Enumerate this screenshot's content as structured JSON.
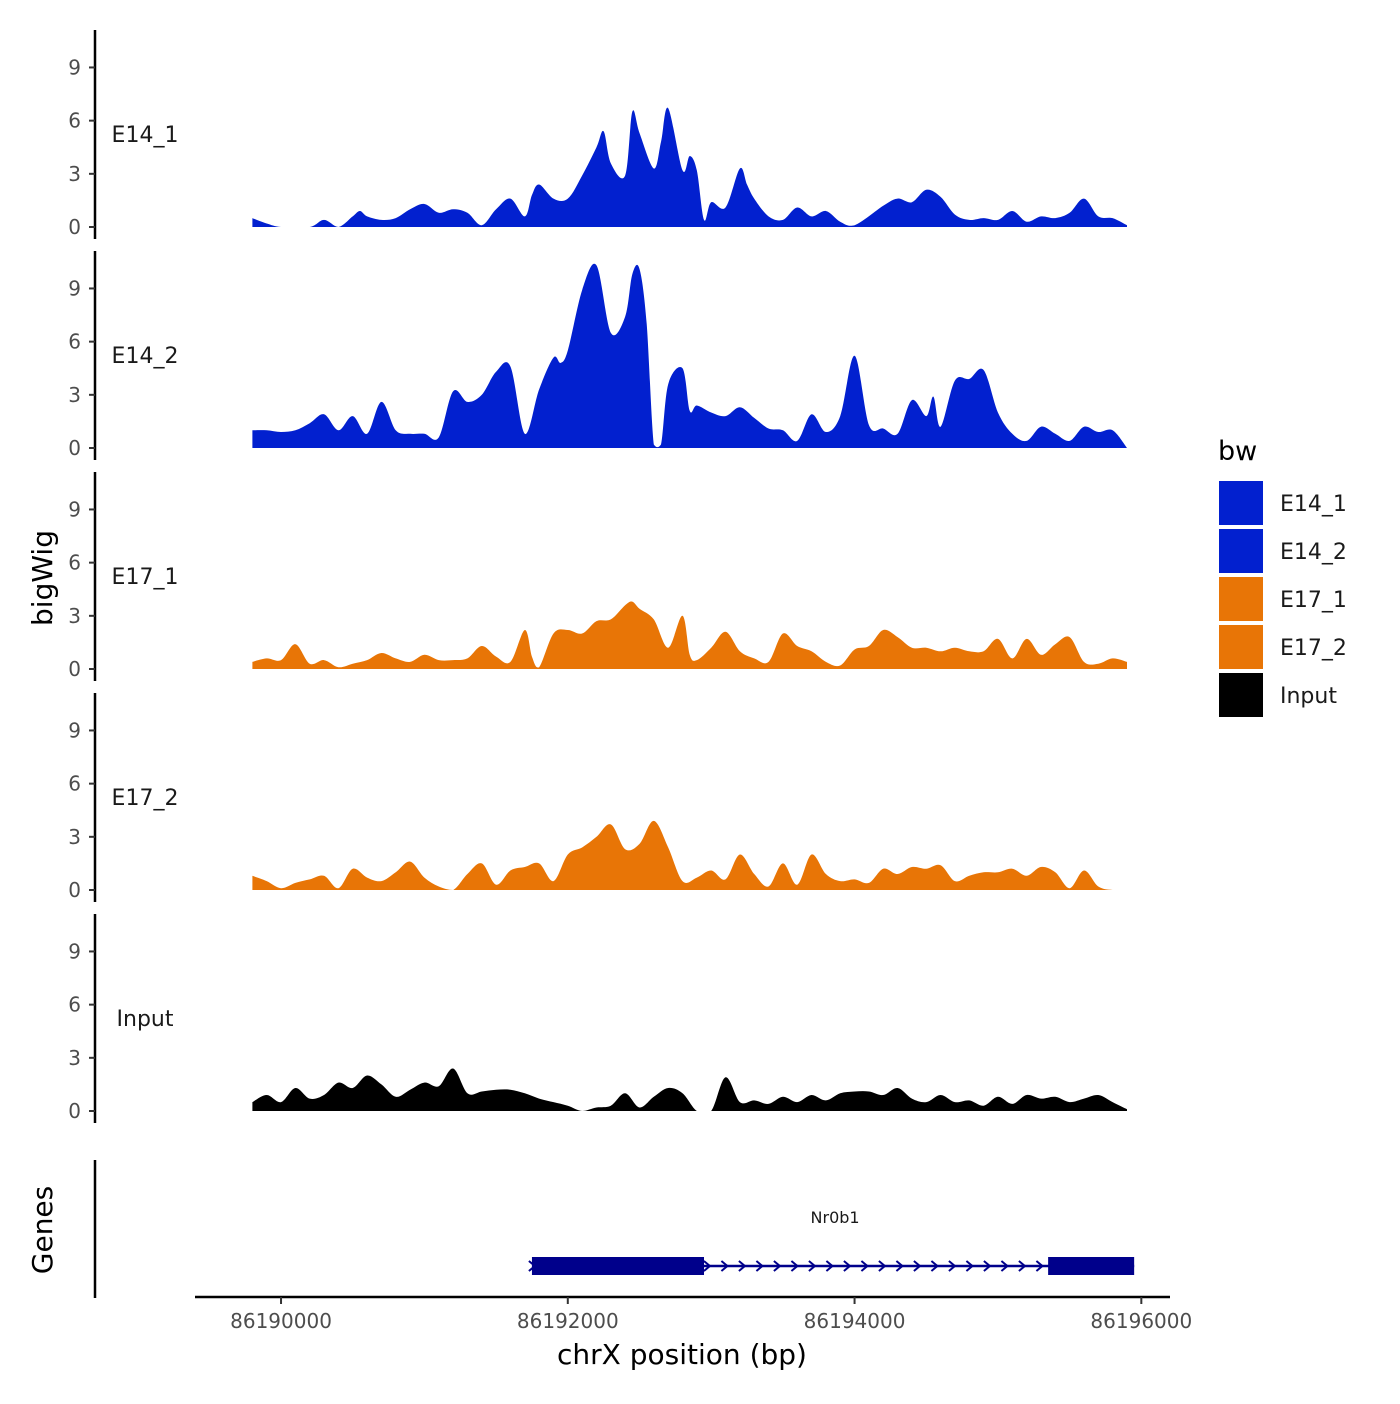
{
  "chart_data": {
    "type": "area",
    "y_axis_title": "bigWig",
    "x_axis_title": "chrX position (bp)",
    "genes_track_title": "Genes",
    "x_range": [
      86189400,
      86196200
    ],
    "x_ticks": [
      86190000,
      86192000,
      86194000,
      86196000
    ],
    "x_tick_labels": [
      "86190000",
      "86192000",
      "86194000",
      "86196000"
    ],
    "y_range": [
      0,
      11
    ],
    "y_ticks": [
      0,
      3,
      6,
      9
    ],
    "y_tick_labels": [
      "0",
      "3",
      "6",
      "9"
    ],
    "legend": {
      "title": "bw",
      "position": "right",
      "items": [
        {
          "label": "E14_1",
          "color": "#0220CF"
        },
        {
          "label": "E14_2",
          "color": "#0220CF"
        },
        {
          "label": "E17_1",
          "color": "#E87506"
        },
        {
          "label": "E17_2",
          "color": "#E87506"
        },
        {
          "label": "Input",
          "color": "#000000"
        }
      ]
    },
    "series": [
      {
        "name": "E14_1",
        "color": "#0220CF",
        "x": [
          86189800,
          86189900,
          86190000,
          86190200,
          86190300,
          86190400,
          86190500,
          86190550,
          86190600,
          86190700,
          86190800,
          86190900,
          86191000,
          86191100,
          86191200,
          86191300,
          86191400,
          86191500,
          86191600,
          86191700,
          86191750,
          86191800,
          86191900,
          86192000,
          86192100,
          86192200,
          86192250,
          86192300,
          86192400,
          86192450,
          86192500,
          86192600,
          86192650,
          86192700,
          86192800,
          86192850,
          86192900,
          86192950,
          86193000,
          86193100,
          86193200,
          86193250,
          86193300,
          86193400,
          86193500,
          86193600,
          86193700,
          86193800,
          86193900,
          86194000,
          86194200,
          86194300,
          86194400,
          86194500,
          86194600,
          86194700,
          86194800,
          86194900,
          86195000,
          86195100,
          86195200,
          86195300,
          86195400,
          86195500,
          86195600,
          86195700,
          86195800,
          86195900
        ],
        "values": [
          0.5,
          0.2,
          0,
          0,
          0.4,
          0,
          0.6,
          0.9,
          0.6,
          0.4,
          0.5,
          1.0,
          1.3,
          0.8,
          1.0,
          0.8,
          0.1,
          1.0,
          1.6,
          0.6,
          1.8,
          2.4,
          1.6,
          1.6,
          2.9,
          4.5,
          5.4,
          3.6,
          2.9,
          6.5,
          5.3,
          3.3,
          4.8,
          6.7,
          3.2,
          4.0,
          3.2,
          0.4,
          1.4,
          1.1,
          3.3,
          2.4,
          1.6,
          0.6,
          0.4,
          1.1,
          0.6,
          0.9,
          0.3,
          0.1,
          1.2,
          1.6,
          1.4,
          2.1,
          1.7,
          0.7,
          0.4,
          0.5,
          0.4,
          0.9,
          0.3,
          0.6,
          0.5,
          0.8,
          1.6,
          0.6,
          0.5,
          0.1
        ]
      },
      {
        "name": "E14_2",
        "color": "#0220CF",
        "x": [
          86189800,
          86189900,
          86190000,
          86190100,
          86190200,
          86190300,
          86190400,
          86190500,
          86190600,
          86190700,
          86190800,
          86190900,
          86191000,
          86191100,
          86191200,
          86191300,
          86191400,
          86191500,
          86191600,
          86191700,
          86191800,
          86191900,
          86191950,
          86192000,
          86192100,
          86192200,
          86192300,
          86192400,
          86192450,
          86192500,
          86192550,
          86192600,
          86192650,
          86192700,
          86192800,
          86192850,
          86192900,
          86193000,
          86193100,
          86193200,
          86193300,
          86193400,
          86193500,
          86193600,
          86193700,
          86193800,
          86193900,
          86194000,
          86194100,
          86194200,
          86194300,
          86194400,
          86194500,
          86194550,
          86194600,
          86194700,
          86194800,
          86194900,
          86195000,
          86195100,
          86195200,
          86195300,
          86195400,
          86195500,
          86195600,
          86195700,
          86195800,
          86195900
        ],
        "values": [
          1.0,
          1.0,
          0.9,
          1.0,
          1.4,
          1.9,
          1.0,
          1.8,
          0.8,
          2.6,
          1.0,
          0.8,
          0.8,
          0.6,
          3.2,
          2.6,
          3.0,
          4.3,
          4.6,
          0.8,
          3.3,
          5.1,
          4.8,
          5.5,
          8.9,
          10.3,
          6.5,
          7.4,
          9.8,
          10.1,
          7.0,
          0.2,
          0.2,
          3.6,
          4.5,
          2.1,
          2.4,
          2.0,
          1.8,
          2.3,
          1.7,
          1.1,
          1.0,
          0.4,
          1.9,
          0.9,
          1.8,
          5.2,
          1.3,
          1.1,
          0.8,
          2.7,
          1.8,
          2.9,
          1.2,
          3.8,
          3.9,
          4.4,
          2.0,
          0.8,
          0.4,
          1.2,
          0.8,
          0.4,
          1.2,
          0.9,
          1.0,
          0
        ]
      },
      {
        "name": "E17_1",
        "color": "#E87506",
        "x": [
          86189800,
          86189900,
          86190000,
          86190100,
          86190200,
          86190300,
          86190400,
          86190500,
          86190600,
          86190700,
          86190800,
          86190900,
          86191000,
          86191100,
          86191200,
          86191300,
          86191400,
          86191500,
          86191600,
          86191700,
          86191750,
          86191800,
          86191900,
          86192000,
          86192100,
          86192200,
          86192300,
          86192400,
          86192450,
          86192500,
          86192600,
          86192700,
          86192800,
          86192850,
          86192900,
          86193000,
          86193100,
          86193200,
          86193300,
          86193400,
          86193500,
          86193600,
          86193700,
          86193800,
          86193900,
          86194000,
          86194100,
          86194200,
          86194300,
          86194400,
          86194500,
          86194600,
          86194700,
          86194800,
          86194900,
          86195000,
          86195100,
          86195200,
          86195300,
          86195400,
          86195500,
          86195600,
          86195700,
          86195800,
          86195900
        ],
        "values": [
          0.4,
          0.6,
          0.5,
          1.4,
          0.3,
          0.5,
          0.1,
          0.3,
          0.5,
          0.9,
          0.6,
          0.4,
          0.8,
          0.5,
          0.5,
          0.6,
          1.3,
          0.7,
          0.4,
          2.2,
          0.7,
          0.1,
          2.0,
          2.2,
          2.0,
          2.7,
          2.8,
          3.6,
          3.8,
          3.4,
          2.8,
          1.2,
          3.0,
          0.8,
          0.5,
          1.2,
          2.1,
          1.0,
          0.6,
          0.4,
          2.0,
          1.3,
          1.0,
          0.4,
          0.2,
          1.1,
          1.3,
          2.2,
          1.8,
          1.2,
          1.2,
          1.0,
          1.2,
          1.0,
          1.0,
          1.7,
          0.6,
          1.7,
          0.8,
          1.4,
          1.8,
          0.4,
          0.3,
          0.6,
          0.4
        ]
      },
      {
        "name": "E17_2",
        "color": "#E87506",
        "x": [
          86189800,
          86189900,
          86190000,
          86190100,
          86190200,
          86190300,
          86190400,
          86190500,
          86190600,
          86190700,
          86190800,
          86190900,
          86191000,
          86191100,
          86191200,
          86191300,
          86191400,
          86191500,
          86191600,
          86191700,
          86191800,
          86191900,
          86192000,
          86192100,
          86192200,
          86192300,
          86192400,
          86192500,
          86192600,
          86192700,
          86192800,
          86192900,
          86193000,
          86193100,
          86193200,
          86193300,
          86193400,
          86193500,
          86193600,
          86193700,
          86193800,
          86193900,
          86194000,
          86194100,
          86194200,
          86194300,
          86194400,
          86194500,
          86194600,
          86194700,
          86194800,
          86194900,
          86195000,
          86195100,
          86195200,
          86195300,
          86195400,
          86195500,
          86195600,
          86195700,
          86195800,
          86195900
        ],
        "values": [
          0.8,
          0.5,
          0.1,
          0.4,
          0.6,
          0.8,
          0.1,
          1.2,
          0.7,
          0.5,
          1.0,
          1.6,
          0.7,
          0.2,
          0,
          0.9,
          1.5,
          0.3,
          1.1,
          1.3,
          1.5,
          0.5,
          2.0,
          2.4,
          3.0,
          3.7,
          2.3,
          2.6,
          3.9,
          2.4,
          0.5,
          0.7,
          1.1,
          0.6,
          2.0,
          0.9,
          0.2,
          1.5,
          0.3,
          2.0,
          0.9,
          0.5,
          0.6,
          0.4,
          1.2,
          0.9,
          1.3,
          1.2,
          1.4,
          0.5,
          0.8,
          1.0,
          1.0,
          1.2,
          0.8,
          1.3,
          1.0,
          0.1,
          1.1,
          0.2,
          0,
          0
        ]
      },
      {
        "name": "Input",
        "color": "#000000",
        "x": [
          86189800,
          86189900,
          86190000,
          86190100,
          86190200,
          86190300,
          86190400,
          86190500,
          86190600,
          86190700,
          86190800,
          86190900,
          86191000,
          86191100,
          86191200,
          86191300,
          86191400,
          86191500,
          86191600,
          86191700,
          86191800,
          86191900,
          86192000,
          86192100,
          86192200,
          86192300,
          86192400,
          86192500,
          86192600,
          86192700,
          86192800,
          86192900,
          86193000,
          86193100,
          86193200,
          86193300,
          86193400,
          86193500,
          86193600,
          86193700,
          86193800,
          86193900,
          86194000,
          86194100,
          86194200,
          86194300,
          86194400,
          86194500,
          86194600,
          86194700,
          86194800,
          86194900,
          86195000,
          86195100,
          86195200,
          86195300,
          86195400,
          86195500,
          86195600,
          86195700,
          86195800,
          86195900
        ],
        "values": [
          0.5,
          0.9,
          0.5,
          1.3,
          0.7,
          0.9,
          1.6,
          1.3,
          2.0,
          1.5,
          0.8,
          1.2,
          1.6,
          1.4,
          2.4,
          1.0,
          1.1,
          1.2,
          1.2,
          1.0,
          0.7,
          0.5,
          0.3,
          0,
          0.2,
          0.3,
          1.0,
          0.2,
          0.8,
          1.3,
          1.0,
          0,
          0,
          1.9,
          0.5,
          0.6,
          0.4,
          0.8,
          0.5,
          0.9,
          0.6,
          1.0,
          1.1,
          1.1,
          0.9,
          1.3,
          0.7,
          0.5,
          0.9,
          0.5,
          0.6,
          0.3,
          0.8,
          0.4,
          0.9,
          0.7,
          0.8,
          0.5,
          0.7,
          0.9,
          0.5,
          0.1
        ]
      }
    ],
    "genes": [
      {
        "name": "Nr0b1",
        "start": 86191750,
        "end": 86195950,
        "strand": "+",
        "exons": [
          [
            86191750,
            86192950
          ],
          [
            86195350,
            86195950
          ]
        ]
      }
    ]
  }
}
